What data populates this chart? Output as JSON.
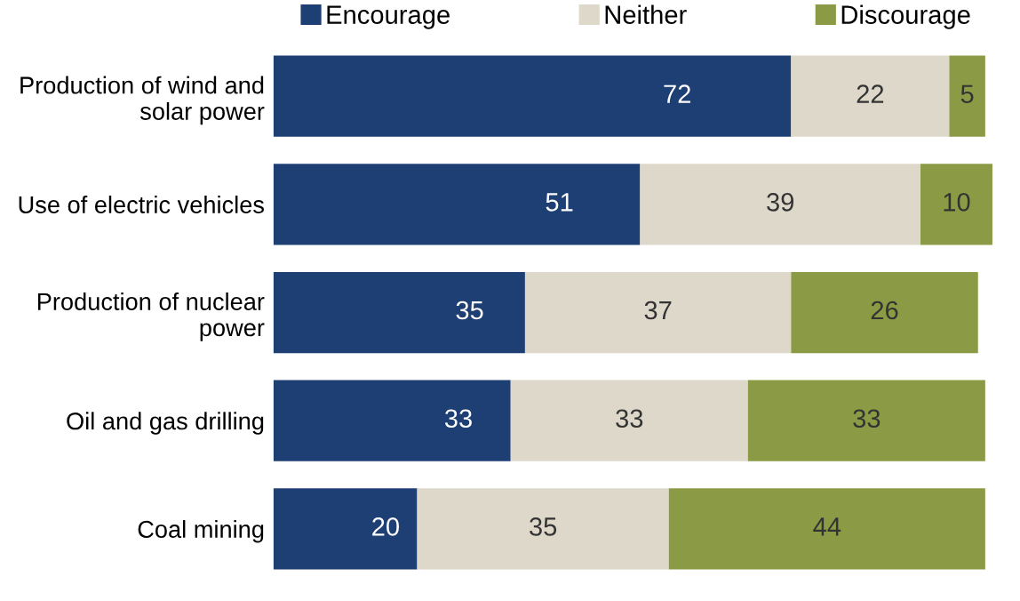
{
  "chart_data": {
    "type": "bar",
    "orientation": "horizontal",
    "stacked": true,
    "data_labels": true,
    "legend": "top",
    "grid": false,
    "tick_labels": "y",
    "categories": [
      "Production of wind and\nsolar power",
      "Use of electric vehicles",
      "Production of nuclear\npower",
      "Oil and gas drilling",
      "Coal mining"
    ],
    "series": [
      {
        "name": "Encourage",
        "color": "#1e3f74",
        "values": [
          72,
          51,
          35,
          33,
          20
        ]
      },
      {
        "name": "Neither",
        "color": "#ddd8c9",
        "values": [
          22,
          39,
          37,
          33,
          35
        ]
      },
      {
        "name": "Discourage",
        "color": "#8b9b45",
        "values": [
          5,
          10,
          26,
          33,
          44
        ]
      }
    ]
  }
}
